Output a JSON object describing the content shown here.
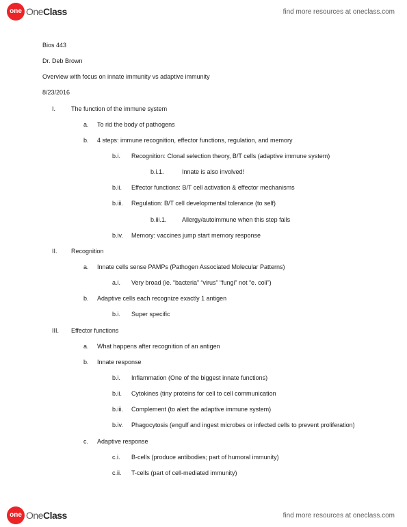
{
  "brand": {
    "badge_text": "one",
    "name_prefix": "One",
    "name_bold": "Class",
    "badge_bg": "#ec2427",
    "badge_fg": "#ffffff"
  },
  "header_link": "find more resources at oneclass.com",
  "footer_link": "find more resources at oneclass.com",
  "meta": {
    "course": "Bios 443",
    "instructor": "Dr. Deb Brown",
    "title": "Overview with focus on innate immunity vs adaptive immunity",
    "date": "8/23/2016"
  },
  "outline": [
    {
      "num": "I.",
      "text": "The function of the immune system",
      "children": [
        {
          "num": "a.",
          "text": "To rid the body of pathogens"
        },
        {
          "num": "b.",
          "text": "4 steps: immune recognition, effector functions, regulation, and memory",
          "children": [
            {
              "num": "b.i.",
              "text": "Recognition: Clonal selection theory, B/T cells (adaptive immune system)",
              "children": [
                {
                  "num": "b.i.1.",
                  "text": "Innate is also involved!"
                }
              ]
            },
            {
              "num": "b.ii.",
              "text": "Effector functions: B/T cell activation & effector mechanisms"
            },
            {
              "num": "b.iii.",
              "text": "Regulation: B/T cell developmental tolerance (to self)",
              "children": [
                {
                  "num": "b.iii.1.",
                  "text": "Allergy/autoimmune when this step fails"
                }
              ]
            },
            {
              "num": "b.iv.",
              "text": "Memory: vaccines jump start memory response"
            }
          ]
        }
      ]
    },
    {
      "num": "II.",
      "text": "Recognition",
      "children": [
        {
          "num": "a.",
          "text": "Innate cells sense PAMPs (Pathogen Associated Molecular Patterns)",
          "children": [
            {
              "num": "a.i.",
              "text": "Very broad (ie. “bacteria” “virus” “fungi” not “e. coli”)"
            }
          ]
        },
        {
          "num": "b.",
          "text": "Adaptive cells each recognize exactly 1 antigen",
          "children": [
            {
              "num": "b.i.",
              "text": "Super specific"
            }
          ]
        }
      ]
    },
    {
      "num": "III.",
      "text": "Effector functions",
      "children": [
        {
          "num": "a.",
          "text": "What happens after recognition of an antigen"
        },
        {
          "num": "b.",
          "text": "Innate response",
          "children": [
            {
              "num": "b.i.",
              "text": "Inflammation (One of the biggest innate functions)"
            },
            {
              "num": "b.ii.",
              "text": "Cytokines (tiny proteins for cell to cell communication"
            },
            {
              "num": "b.iii.",
              "text": "Complement (to alert the adaptive immune system)"
            },
            {
              "num": "b.iv.",
              "text": "Phagocytosis (engulf and ingest microbes or infected cells to prevent proliferation)"
            }
          ]
        },
        {
          "num": "c.",
          "text": "Adaptive response",
          "children": [
            {
              "num": "c.i.",
              "text": "B-cells (produce antibodies; part of humoral immunity)"
            },
            {
              "num": "c.ii.",
              "text": "T-cells (part of cell-mediated immunity)"
            }
          ]
        }
      ]
    }
  ]
}
